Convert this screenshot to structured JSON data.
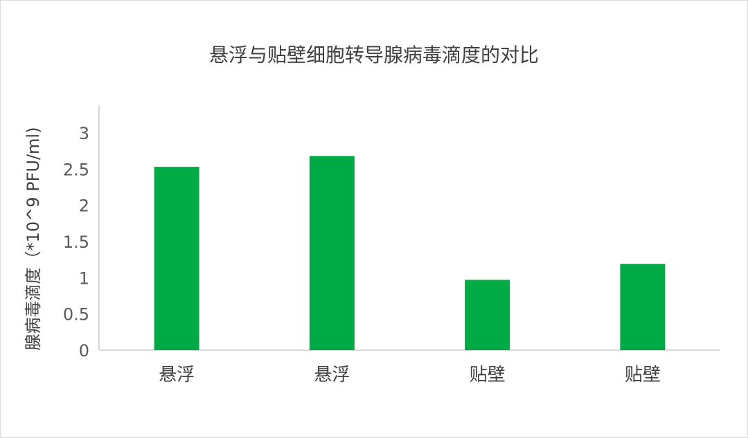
{
  "chart_data": {
    "type": "bar",
    "title": "悬浮与贴壁细胞转导腺病毒滴度的对比",
    "xlabel": "",
    "ylabel": "腺病毒滴度（*10^9 PFU/ml)",
    "categories": [
      "悬浮",
      "悬浮",
      "贴壁",
      "贴壁"
    ],
    "values": [
      2.53,
      2.68,
      0.97,
      1.19
    ],
    "ylim": [
      0,
      3.38
    ],
    "yticks": [
      "0",
      "0.5",
      "1",
      "1.5",
      "2",
      "2.5",
      "3"
    ],
    "grid": false,
    "legend": "none",
    "bar_color": "#00AA44"
  }
}
